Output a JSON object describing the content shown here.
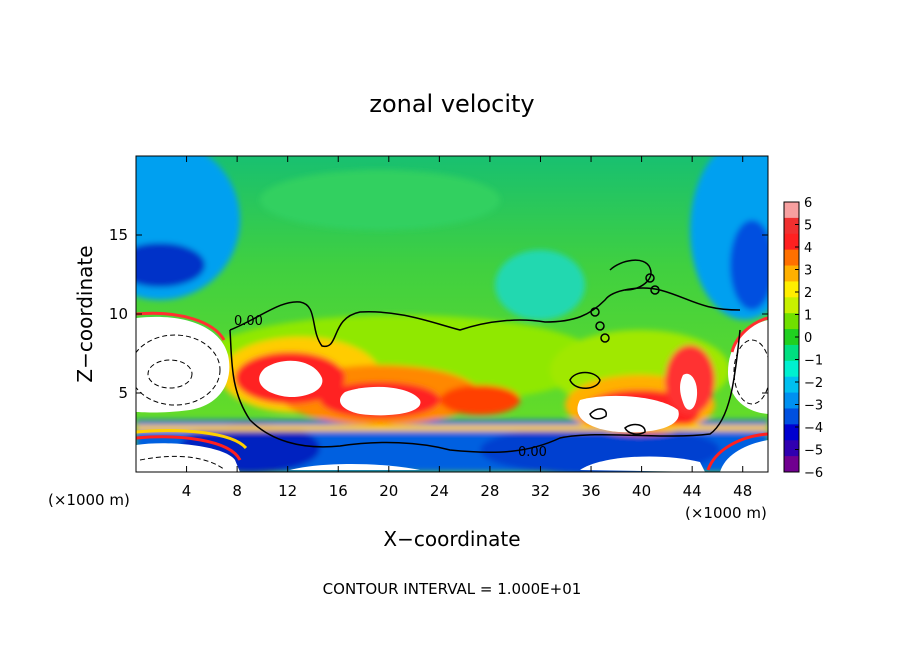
{
  "chart_data": {
    "type": "heatmap",
    "title": "zonal velocity",
    "xlabel": "X−coordinate",
    "ylabel": "Z−coordinate",
    "x_units_left": "(×1000 m)",
    "x_units_right": "(×1000 m)",
    "x_ticks": [
      "4",
      "8",
      "12",
      "16",
      "20",
      "24",
      "28",
      "32",
      "36",
      "40",
      "44",
      "48"
    ],
    "y_ticks": [
      "5",
      "10",
      "15"
    ],
    "xlim": [
      0,
      50
    ],
    "ylim": [
      0,
      20
    ],
    "colorbar": {
      "ticks": [
        "6",
        "5",
        "4",
        "3",
        "2",
        "1",
        "0",
        "−1",
        "−2",
        "−3",
        "−4",
        "−5",
        "−6"
      ],
      "range": [
        -6,
        6
      ],
      "colors": [
        "#f7a0a0",
        "#f03030",
        "#ff2020",
        "#ff7000",
        "#ffb000",
        "#ffee00",
        "#c8f000",
        "#70e000",
        "#20d020",
        "#00e080",
        "#00f0d0",
        "#00c0f0",
        "#0090f0",
        "#0050e0",
        "#0000d0",
        "#3000b0",
        "#700090"
      ]
    },
    "contour_label": "0.00",
    "footer": "CONTOUR INTERVAL = 1.000E+01"
  }
}
